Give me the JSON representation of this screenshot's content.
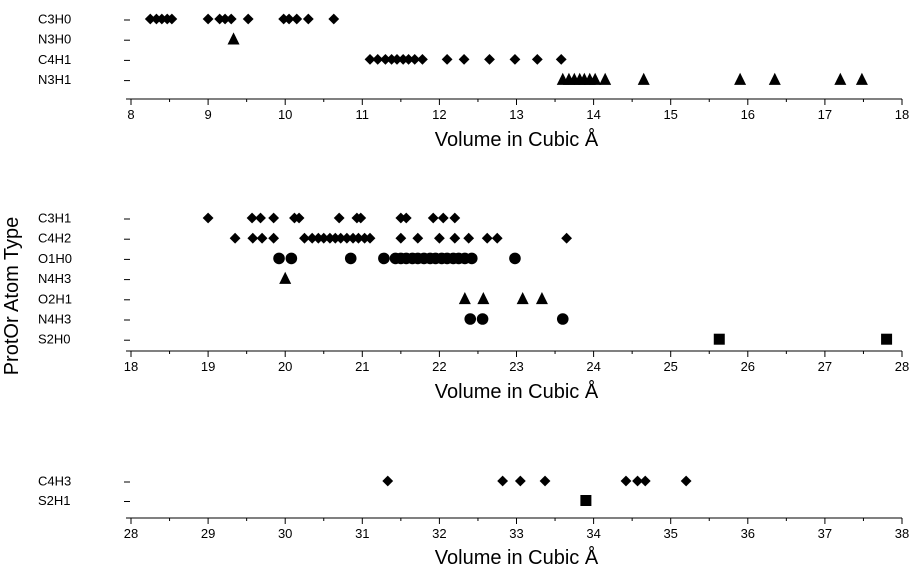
{
  "chart_data": {
    "type": "scatter",
    "shared_ylabel": "ProtOr Atom Type",
    "panels": [
      {
        "xlabel": "Volume in Cubic Å",
        "xlim": [
          8,
          18
        ],
        "xticks": [
          8,
          9,
          10,
          11,
          12,
          13,
          14,
          15,
          16,
          17,
          18
        ],
        "categories": [
          "C3H0",
          "N3H0",
          "C4H1",
          "N3H1"
        ],
        "series": [
          {
            "category": "C3H0",
            "marker": "diamond",
            "x": [
              8.25,
              8.33,
              8.4,
              8.47,
              8.53,
              9.0,
              9.15,
              9.22,
              9.3,
              9.52,
              9.98,
              10.05,
              10.15,
              10.3,
              10.63
            ]
          },
          {
            "category": "N3H0",
            "marker": "triangle",
            "x": [
              9.33
            ]
          },
          {
            "category": "C4H1",
            "marker": "diamond",
            "x": [
              11.1,
              11.2,
              11.3,
              11.38,
              11.45,
              11.53,
              11.6,
              11.68,
              11.78,
              12.1,
              12.32,
              12.65,
              12.98,
              13.27,
              13.58
            ]
          },
          {
            "category": "N3H1",
            "marker": "triangle",
            "x": [
              13.6,
              13.68,
              13.75,
              13.82,
              13.88,
              13.95,
              14.02,
              14.15,
              14.65,
              15.9,
              16.35,
              17.2,
              17.48
            ]
          }
        ]
      },
      {
        "xlabel": "Volume in Cubic Å",
        "xlim": [
          18,
          28
        ],
        "xticks": [
          18,
          19,
          20,
          21,
          22,
          23,
          24,
          25,
          26,
          27,
          28
        ],
        "categories": [
          "C3H1",
          "C4H2",
          "O1H0",
          "N4H3",
          "O2H1",
          "N4H3",
          "S2H0"
        ],
        "series": [
          {
            "category": "C3H1",
            "marker": "diamond",
            "x": [
              19.0,
              19.57,
              19.68,
              19.85,
              20.12,
              20.18,
              20.7,
              20.93,
              20.98,
              21.5,
              21.57,
              21.92,
              22.05,
              22.2
            ]
          },
          {
            "category": "C4H2",
            "marker": "diamond",
            "x": [
              19.35,
              19.58,
              19.7,
              19.85,
              20.25,
              20.35,
              20.43,
              20.5,
              20.58,
              20.65,
              20.72,
              20.8,
              20.88,
              20.95,
              21.03,
              21.1,
              21.5,
              21.72,
              22.0,
              22.2,
              22.38,
              22.62,
              22.75,
              23.65
            ]
          },
          {
            "category": "O1H0",
            "marker": "circle",
            "x": [
              19.92,
              20.08,
              20.85,
              21.28,
              21.43,
              21.5,
              21.57,
              21.65,
              21.72,
              21.8,
              21.88,
              21.95,
              22.03,
              22.1,
              22.18,
              22.25,
              22.33,
              22.42,
              22.98
            ]
          },
          {
            "category": "N4H3",
            "marker": "triangle",
            "x": [
              20.0
            ]
          },
          {
            "category": "O2H1",
            "marker": "triangle",
            "x": [
              22.33,
              22.57,
              23.08,
              23.33
            ]
          },
          {
            "category": "N4H3",
            "marker": "circle",
            "x": [
              22.4,
              22.56,
              23.6
            ]
          },
          {
            "category": "S2H0",
            "marker": "square",
            "x": [
              25.63,
              27.8
            ]
          }
        ]
      },
      {
        "xlabel": "Volume in Cubic Å",
        "xlim": [
          28,
          38
        ],
        "xticks": [
          28,
          29,
          30,
          31,
          32,
          33,
          34,
          35,
          36,
          37,
          38
        ],
        "categories": [
          "C4H3",
          "S2H1"
        ],
        "series": [
          {
            "category": "C4H3",
            "marker": "diamond",
            "x": [
              31.33,
              32.82,
              33.05,
              33.37,
              34.42,
              34.57,
              34.67,
              35.2
            ]
          },
          {
            "category": "S2H1",
            "marker": "square",
            "x": [
              33.9
            ]
          }
        ]
      }
    ]
  }
}
